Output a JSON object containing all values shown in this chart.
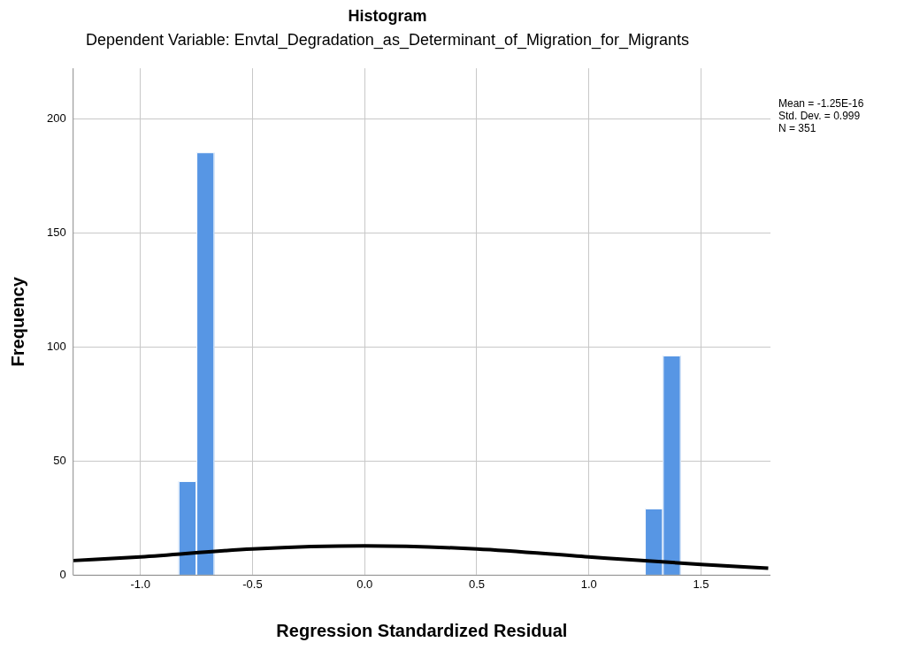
{
  "chart_data": {
    "type": "histogram",
    "title": "Histogram",
    "subtitle": "Dependent Variable: Envtal_Degradation_as_Determinant_of_Migration_for_Migrants",
    "xlabel": "Regression Standardized Residual",
    "ylabel": "Frequency",
    "bins": [
      -0.83,
      -0.75,
      -0.67,
      1.25,
      1.33,
      1.41
    ],
    "values": [
      41,
      185,
      0,
      29,
      96
    ],
    "color": "#5796e4",
    "series": [
      {
        "type": "line",
        "color": "#000000",
        "x": [
          -1.3,
          -1.0,
          -0.5,
          0,
          0.5,
          1.0,
          1.5,
          1.8
        ],
        "values": [
          6.4,
          8.0,
          11.5,
          12.8,
          11.5,
          8.0,
          4.7,
          3.1
        ]
      }
    ],
    "xlim": [
      -1.3,
      1.81
    ],
    "xticks": [
      {
        "value": -1,
        "label": "-1.0"
      },
      -0.5,
      {
        "value": 0,
        "label": "0.0"
      },
      0.5,
      {
        "value": 1,
        "label": "1.0"
      },
      1.5
    ],
    "ylim": [
      0,
      222
    ],
    "yticks": [
      0,
      50,
      100,
      150,
      200
    ],
    "grid": true,
    "legend": false,
    "marker": "none",
    "annotations": [
      "Mean = -1.25E-16",
      "Std. Dev. = 0.999",
      "N = 351"
    ]
  }
}
